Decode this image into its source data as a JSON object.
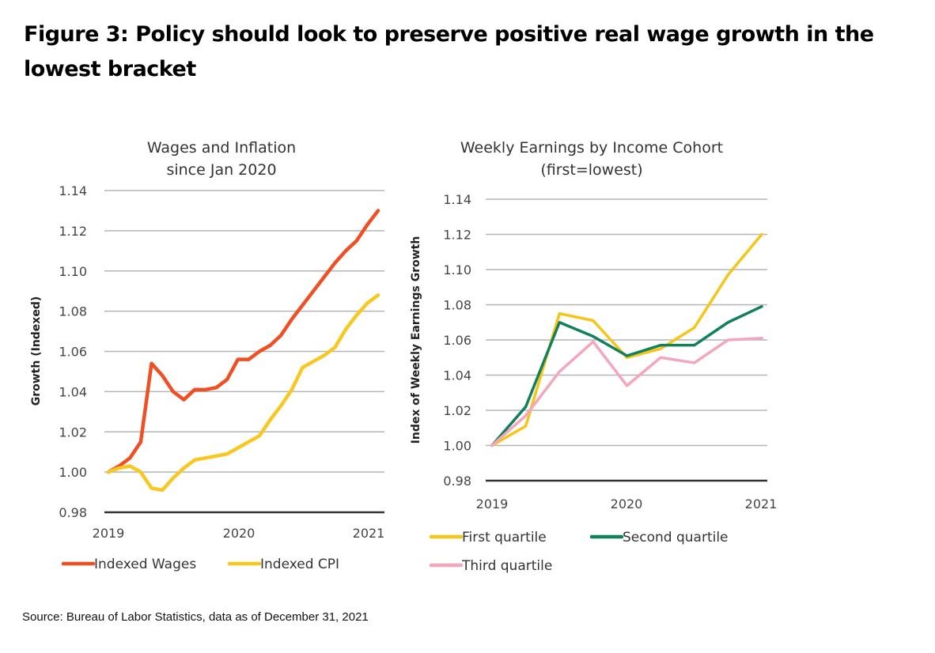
{
  "figure": {
    "title": "Figure 3: Policy should look to preserve positive real wage growth in the lowest bracket",
    "source": "Source: Bureau of Labor Statistics, data as of December 31, 2021"
  },
  "chart_data": [
    {
      "type": "line",
      "title": [
        "Wages and Inflation",
        "since Jan 2020"
      ],
      "xlabel": "",
      "ylabel": "Growth (Indexed)",
      "xlim": [
        2019,
        2021.08
      ],
      "ylim": [
        0.98,
        1.14
      ],
      "x_ticks": [
        "2019",
        "2020",
        "2021"
      ],
      "y_ticks": [
        "1.14",
        "1.12",
        "1.10",
        "1.08",
        "1.06",
        "1.04",
        "1.02",
        "1.00",
        "0.98"
      ],
      "grid": true,
      "legend_position": "bottom",
      "x": [
        2019.0,
        2019.083,
        2019.167,
        2019.25,
        2019.333,
        2019.417,
        2019.5,
        2019.583,
        2019.667,
        2019.75,
        2019.833,
        2019.917,
        2020.0,
        2020.083,
        2020.167,
        2020.25,
        2020.333,
        2020.417,
        2020.5,
        2020.583,
        2020.667,
        2020.75,
        2020.833,
        2020.917,
        2021.0,
        2021.083
      ],
      "series": [
        {
          "name": "Indexed Wages",
          "color": "#f04e23",
          "values": [
            1.0,
            1.003,
            1.007,
            1.015,
            1.054,
            1.048,
            1.04,
            1.036,
            1.041,
            1.041,
            1.042,
            1.046,
            1.056,
            1.056,
            1.06,
            1.063,
            1.068,
            1.076,
            1.083,
            1.09,
            1.097,
            1.104,
            1.11,
            1.115,
            1.123,
            1.13
          ]
        },
        {
          "name": "Indexed CPI",
          "color": "#f8c820",
          "values": [
            1.0,
            1.002,
            1.003,
            1.0,
            0.992,
            0.991,
            0.997,
            1.002,
            1.006,
            1.007,
            1.008,
            1.009,
            1.012,
            1.015,
            1.018,
            1.026,
            1.033,
            1.041,
            1.052,
            1.055,
            1.058,
            1.062,
            1.071,
            1.078,
            1.084,
            1.088
          ]
        }
      ]
    },
    {
      "type": "line",
      "title": [
        "Weekly Earnings by Income Cohort",
        "(first=lowest)"
      ],
      "xlabel": "",
      "ylabel": "Index of Weekly Earnings Growth",
      "xlim": [
        2019,
        2021
      ],
      "ylim": [
        0.98,
        1.14
      ],
      "x_ticks": [
        "2019",
        "2020",
        "2021"
      ],
      "y_ticks": [
        "1.14",
        "1.12",
        "1.10",
        "1.08",
        "1.06",
        "1.04",
        "1.02",
        "1.00",
        "0.98"
      ],
      "grid": true,
      "legend_position": "bottom",
      "x": [
        2019.0,
        2019.25,
        2019.5,
        2019.75,
        2020.0,
        2020.25,
        2020.5,
        2020.75,
        2021.0
      ],
      "series": [
        {
          "name": "First quartile",
          "color": "#f5c518",
          "values": [
            1.0,
            1.011,
            1.075,
            1.071,
            1.05,
            1.055,
            1.067,
            1.097,
            1.12
          ]
        },
        {
          "name": "Second quartile",
          "color": "#12805c",
          "values": [
            1.0,
            1.022,
            1.07,
            1.062,
            1.051,
            1.057,
            1.057,
            1.07,
            1.079
          ]
        },
        {
          "name": "Third quartile",
          "color": "#f4a6bd",
          "values": [
            1.0,
            1.017,
            1.042,
            1.059,
            1.034,
            1.05,
            1.047,
            1.06,
            1.061
          ]
        }
      ]
    }
  ]
}
